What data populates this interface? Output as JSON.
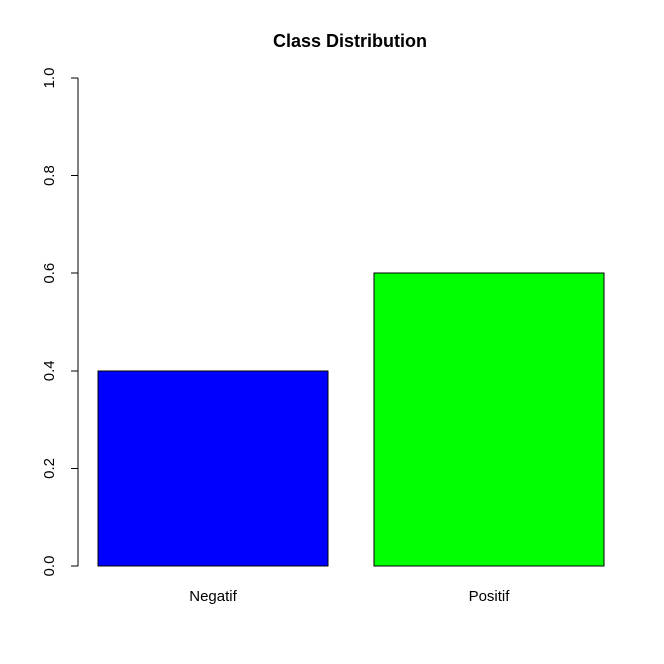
{
  "chart_data": {
    "type": "bar",
    "title": "Class Distribution",
    "xlabel": "",
    "ylabel": "",
    "categories": [
      "Negatif",
      "Positif"
    ],
    "values": [
      0.4,
      0.6
    ],
    "colors": [
      "#0000ff",
      "#00ff00"
    ],
    "bar_border_color": "#000000",
    "ylim": [
      0,
      1
    ],
    "yticks": [
      0.0,
      0.2,
      0.4,
      0.6,
      0.8,
      1.0
    ],
    "ytick_labels": [
      "0.0",
      "0.2",
      "0.4",
      "0.6",
      "0.8",
      "1.0"
    ],
    "grid": false,
    "legend": "none"
  }
}
